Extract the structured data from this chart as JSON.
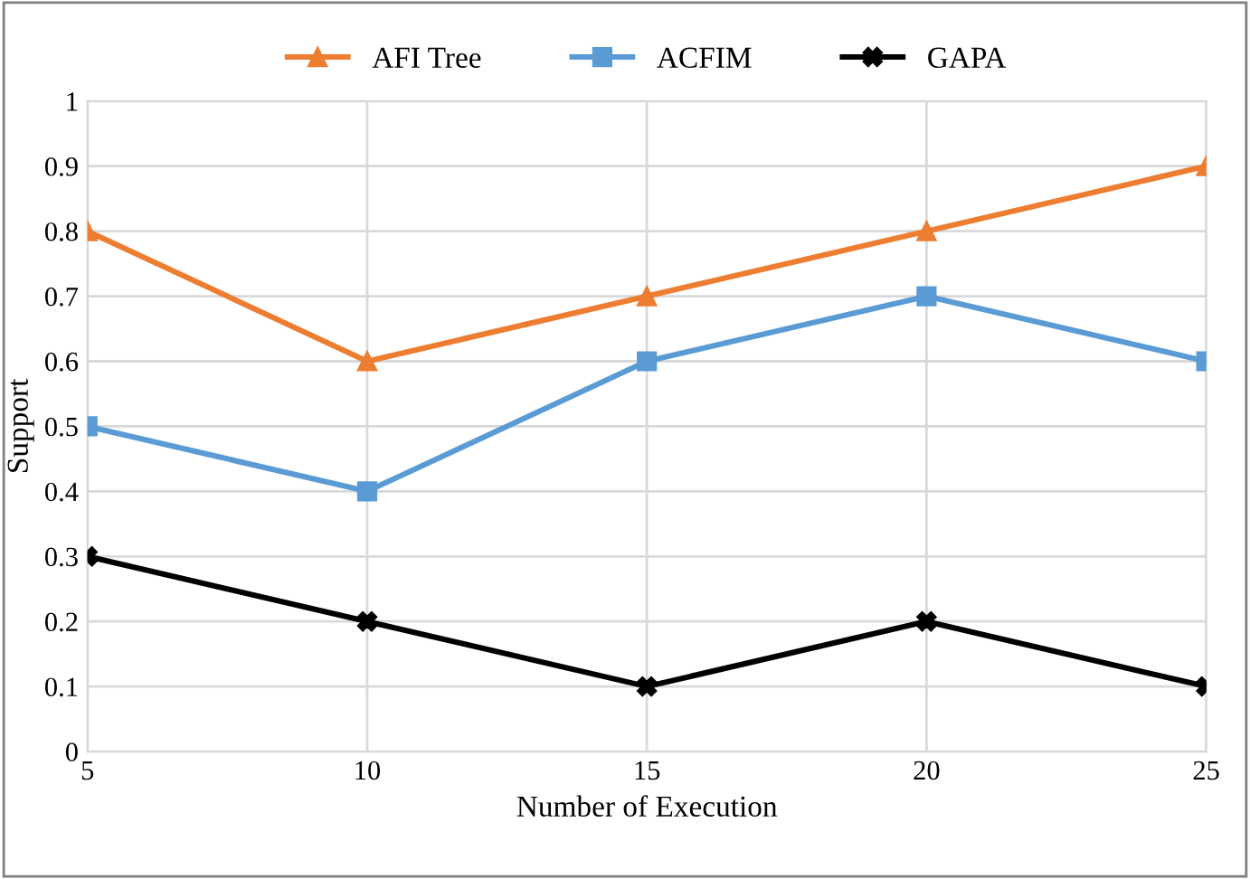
{
  "chart_data": {
    "type": "line",
    "xlabel": "Number of Execution",
    "ylabel": "Support",
    "x": [
      5,
      10,
      15,
      20,
      25
    ],
    "series": [
      {
        "name": "AFI Tree",
        "color": "#ed7d31",
        "marker": "triangle",
        "values": [
          0.8,
          0.6,
          0.7,
          0.8,
          0.9
        ]
      },
      {
        "name": "ACFIM",
        "color": "#5b9bd5",
        "marker": "square",
        "values": [
          0.5,
          0.4,
          0.6,
          0.7,
          0.6
        ]
      },
      {
        "name": "GAPA",
        "color": "#000000",
        "marker": "cross",
        "values": [
          0.3,
          0.2,
          0.1,
          0.2,
          0.1
        ]
      }
    ],
    "xlim": [
      5,
      25
    ],
    "xticks": [
      5,
      10,
      15,
      20,
      25
    ],
    "ylim": [
      0,
      1
    ],
    "yticks": [
      0,
      0.1,
      0.2,
      0.3,
      0.4,
      0.5,
      0.6,
      0.7,
      0.8,
      0.9,
      1
    ],
    "grid": true,
    "legend": "top",
    "line_style": "solid"
  }
}
